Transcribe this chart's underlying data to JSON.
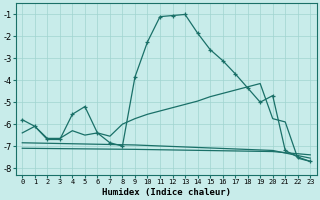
{
  "xlabel": "Humidex (Indice chaleur)",
  "background_color": "#c8ecea",
  "grid_color": "#a0d4d0",
  "line_color": "#1a7068",
  "xlim": [
    -0.5,
    23.5
  ],
  "ylim": [
    -8.3,
    -0.5
  ],
  "yticks": [
    -8,
    -7,
    -6,
    -5,
    -4,
    -3,
    -2,
    -1
  ],
  "xticks": [
    0,
    1,
    2,
    3,
    4,
    5,
    6,
    7,
    8,
    9,
    10,
    11,
    12,
    13,
    14,
    15,
    16,
    17,
    18,
    19,
    20,
    21,
    22,
    23
  ],
  "line1_x": [
    0,
    1,
    2,
    3,
    4,
    5,
    6,
    7,
    8,
    9,
    10,
    11,
    12,
    13,
    14,
    15,
    16,
    17,
    18,
    19,
    20,
    21,
    22,
    23
  ],
  "line1_y": [
    -5.8,
    -6.1,
    -6.7,
    -6.7,
    -5.55,
    -5.2,
    -6.4,
    -6.85,
    -7.0,
    -3.85,
    -2.25,
    -1.1,
    -1.05,
    -1.0,
    -1.85,
    -2.6,
    -3.1,
    -3.7,
    -4.35,
    -5.0,
    -4.7,
    -7.2,
    -7.5,
    -7.7
  ],
  "line2_x": [
    0,
    1,
    2,
    3,
    4,
    5,
    6,
    7,
    8,
    9,
    10,
    11,
    12,
    13,
    14,
    15,
    16,
    17,
    18,
    19,
    20,
    21,
    22,
    23
  ],
  "line2_y": [
    -6.4,
    -6.1,
    -6.65,
    -6.65,
    -6.3,
    -6.5,
    -6.4,
    -6.55,
    -6.0,
    -5.75,
    -5.55,
    -5.4,
    -5.25,
    -5.1,
    -4.95,
    -4.75,
    -4.6,
    -4.45,
    -4.3,
    -4.15,
    -5.75,
    -5.9,
    -7.55,
    -7.7
  ],
  "line3_x": [
    0,
    9,
    20,
    23
  ],
  "line3_y": [
    -7.1,
    -7.15,
    -7.25,
    -7.4
  ],
  "line4_x": [
    0,
    9,
    20,
    23
  ],
  "line4_y": [
    -6.85,
    -6.95,
    -7.2,
    -7.55
  ]
}
